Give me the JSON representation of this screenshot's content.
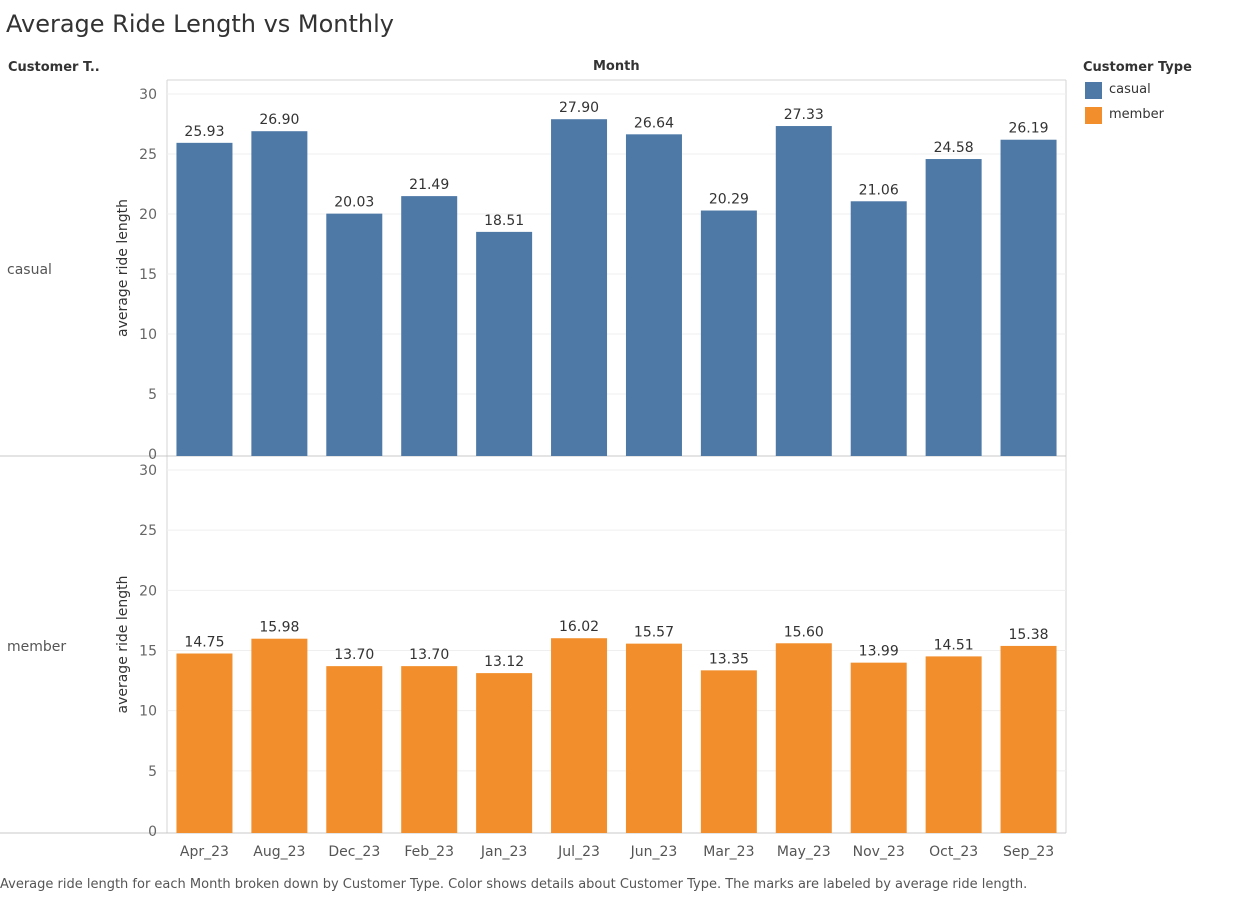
{
  "title": "Average Ride Length vs Monthly",
  "row_header": "Customer T..",
  "column_header": "Month",
  "legend": {
    "title": "Customer Type",
    "items": [
      {
        "label": "casual",
        "color": "#4e79a7"
      },
      {
        "label": "member",
        "color": "#f28e2b"
      }
    ]
  },
  "caption": "Average ride length for each Month broken down by Customer Type.  Color shows details about Customer Type.  The marks are labeled by average ride length.",
  "chart_data": {
    "type": "bar",
    "categories": [
      "Apr_23",
      "Aug_23",
      "Dec_23",
      "Feb_23",
      "Jan_23",
      "Jul_23",
      "Jun_23",
      "Mar_23",
      "May_23",
      "Nov_23",
      "Oct_23",
      "Sep_23"
    ],
    "ylabel": "average ride length",
    "ylim": [
      0,
      30
    ],
    "yticks": [
      0,
      5,
      10,
      15,
      20,
      25,
      30
    ],
    "grid": true,
    "legend_position": "right",
    "series": [
      {
        "name": "casual",
        "color": "#4e79a7",
        "values": [
          25.93,
          26.9,
          20.03,
          21.49,
          18.51,
          27.9,
          26.64,
          20.29,
          27.33,
          21.06,
          24.58,
          26.19
        ],
        "labels": [
          "25.93",
          "26.90",
          "20.03",
          "21.49",
          "18.51",
          "27.90",
          "26.64",
          "20.29",
          "27.33",
          "21.06",
          "24.58",
          "26.19"
        ]
      },
      {
        "name": "member",
        "color": "#f28e2b",
        "values": [
          14.75,
          15.98,
          13.7,
          13.7,
          13.12,
          16.02,
          15.57,
          13.35,
          15.6,
          13.99,
          14.51,
          15.38
        ],
        "labels": [
          "14.75",
          "15.98",
          "13.70",
          "13.70",
          "13.12",
          "16.02",
          "15.57",
          "13.35",
          "15.60",
          "13.99",
          "14.51",
          "15.38"
        ]
      }
    ]
  }
}
